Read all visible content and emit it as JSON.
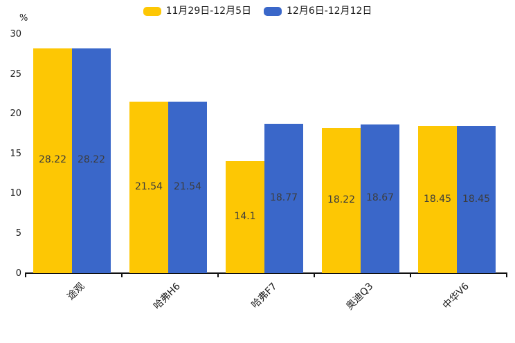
{
  "chart_data": {
    "type": "bar",
    "title": "",
    "ylabel": "%",
    "categories": [
      "途观",
      "哈弗H6",
      "哈弗F7",
      "奥迪Q3",
      "中华V6"
    ],
    "series": [
      {
        "name": "11月29日-12月5日",
        "color": "#FDC704",
        "values": [
          28.22,
          21.54,
          14.1,
          18.22,
          18.45
        ]
      },
      {
        "name": "12月6日-12月12日",
        "color": "#3A67C9",
        "values": [
          28.22,
          21.54,
          18.77,
          18.67,
          18.45
        ]
      }
    ],
    "value_labels": [
      "28.22",
      "21.54",
      "14.1",
      "18.22",
      "18.45",
      "28.22",
      "21.54",
      "18.77",
      "18.67",
      "18.45"
    ],
    "ylim": [
      0,
      30
    ],
    "yticks": [
      0,
      5,
      10,
      15,
      20,
      25,
      30
    ],
    "grid": false,
    "legend_position": "top",
    "value_label_position": "inside-center"
  },
  "colors": {
    "series_yellow": "#FDC704",
    "series_blue": "#3A67C9",
    "axis_line": "#111111",
    "axis_text": "#1A1A1A",
    "value_label_text": "#3D3D3D",
    "background": "#FFFFFF"
  }
}
